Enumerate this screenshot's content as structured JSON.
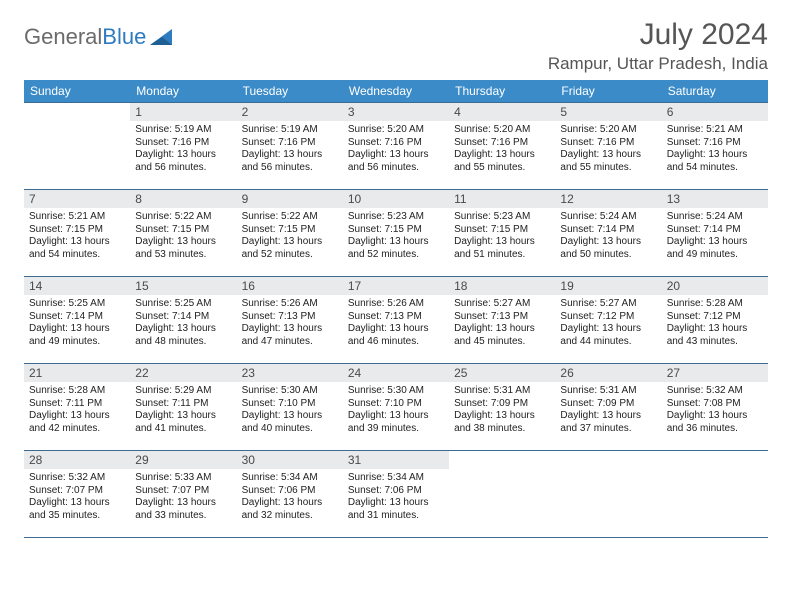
{
  "logo": {
    "word1": "General",
    "word2": "Blue"
  },
  "title": "July 2024",
  "location": "Rampur, Uttar Pradesh, India",
  "day_headers": [
    "Sunday",
    "Monday",
    "Tuesday",
    "Wednesday",
    "Thursday",
    "Friday",
    "Saturday"
  ],
  "colors": {
    "header_bg": "#3b8bc8",
    "header_text": "#ffffff",
    "daynum_bg": "#e9eaec",
    "rule": "#3b6a93",
    "title_text": "#555555",
    "logo_gray": "#6b6b6b",
    "logo_blue": "#2f7bbf"
  },
  "weeks": [
    [
      null,
      {
        "n": "1",
        "sr": "Sunrise: 5:19 AM",
        "ss": "Sunset: 7:16 PM",
        "d1": "Daylight: 13 hours",
        "d2": "and 56 minutes."
      },
      {
        "n": "2",
        "sr": "Sunrise: 5:19 AM",
        "ss": "Sunset: 7:16 PM",
        "d1": "Daylight: 13 hours",
        "d2": "and 56 minutes."
      },
      {
        "n": "3",
        "sr": "Sunrise: 5:20 AM",
        "ss": "Sunset: 7:16 PM",
        "d1": "Daylight: 13 hours",
        "d2": "and 56 minutes."
      },
      {
        "n": "4",
        "sr": "Sunrise: 5:20 AM",
        "ss": "Sunset: 7:16 PM",
        "d1": "Daylight: 13 hours",
        "d2": "and 55 minutes."
      },
      {
        "n": "5",
        "sr": "Sunrise: 5:20 AM",
        "ss": "Sunset: 7:16 PM",
        "d1": "Daylight: 13 hours",
        "d2": "and 55 minutes."
      },
      {
        "n": "6",
        "sr": "Sunrise: 5:21 AM",
        "ss": "Sunset: 7:16 PM",
        "d1": "Daylight: 13 hours",
        "d2": "and 54 minutes."
      }
    ],
    [
      {
        "n": "7",
        "sr": "Sunrise: 5:21 AM",
        "ss": "Sunset: 7:15 PM",
        "d1": "Daylight: 13 hours",
        "d2": "and 54 minutes."
      },
      {
        "n": "8",
        "sr": "Sunrise: 5:22 AM",
        "ss": "Sunset: 7:15 PM",
        "d1": "Daylight: 13 hours",
        "d2": "and 53 minutes."
      },
      {
        "n": "9",
        "sr": "Sunrise: 5:22 AM",
        "ss": "Sunset: 7:15 PM",
        "d1": "Daylight: 13 hours",
        "d2": "and 52 minutes."
      },
      {
        "n": "10",
        "sr": "Sunrise: 5:23 AM",
        "ss": "Sunset: 7:15 PM",
        "d1": "Daylight: 13 hours",
        "d2": "and 52 minutes."
      },
      {
        "n": "11",
        "sr": "Sunrise: 5:23 AM",
        "ss": "Sunset: 7:15 PM",
        "d1": "Daylight: 13 hours",
        "d2": "and 51 minutes."
      },
      {
        "n": "12",
        "sr": "Sunrise: 5:24 AM",
        "ss": "Sunset: 7:14 PM",
        "d1": "Daylight: 13 hours",
        "d2": "and 50 minutes."
      },
      {
        "n": "13",
        "sr": "Sunrise: 5:24 AM",
        "ss": "Sunset: 7:14 PM",
        "d1": "Daylight: 13 hours",
        "d2": "and 49 minutes."
      }
    ],
    [
      {
        "n": "14",
        "sr": "Sunrise: 5:25 AM",
        "ss": "Sunset: 7:14 PM",
        "d1": "Daylight: 13 hours",
        "d2": "and 49 minutes."
      },
      {
        "n": "15",
        "sr": "Sunrise: 5:25 AM",
        "ss": "Sunset: 7:14 PM",
        "d1": "Daylight: 13 hours",
        "d2": "and 48 minutes."
      },
      {
        "n": "16",
        "sr": "Sunrise: 5:26 AM",
        "ss": "Sunset: 7:13 PM",
        "d1": "Daylight: 13 hours",
        "d2": "and 47 minutes."
      },
      {
        "n": "17",
        "sr": "Sunrise: 5:26 AM",
        "ss": "Sunset: 7:13 PM",
        "d1": "Daylight: 13 hours",
        "d2": "and 46 minutes."
      },
      {
        "n": "18",
        "sr": "Sunrise: 5:27 AM",
        "ss": "Sunset: 7:13 PM",
        "d1": "Daylight: 13 hours",
        "d2": "and 45 minutes."
      },
      {
        "n": "19",
        "sr": "Sunrise: 5:27 AM",
        "ss": "Sunset: 7:12 PM",
        "d1": "Daylight: 13 hours",
        "d2": "and 44 minutes."
      },
      {
        "n": "20",
        "sr": "Sunrise: 5:28 AM",
        "ss": "Sunset: 7:12 PM",
        "d1": "Daylight: 13 hours",
        "d2": "and 43 minutes."
      }
    ],
    [
      {
        "n": "21",
        "sr": "Sunrise: 5:28 AM",
        "ss": "Sunset: 7:11 PM",
        "d1": "Daylight: 13 hours",
        "d2": "and 42 minutes."
      },
      {
        "n": "22",
        "sr": "Sunrise: 5:29 AM",
        "ss": "Sunset: 7:11 PM",
        "d1": "Daylight: 13 hours",
        "d2": "and 41 minutes."
      },
      {
        "n": "23",
        "sr": "Sunrise: 5:30 AM",
        "ss": "Sunset: 7:10 PM",
        "d1": "Daylight: 13 hours",
        "d2": "and 40 minutes."
      },
      {
        "n": "24",
        "sr": "Sunrise: 5:30 AM",
        "ss": "Sunset: 7:10 PM",
        "d1": "Daylight: 13 hours",
        "d2": "and 39 minutes."
      },
      {
        "n": "25",
        "sr": "Sunrise: 5:31 AM",
        "ss": "Sunset: 7:09 PM",
        "d1": "Daylight: 13 hours",
        "d2": "and 38 minutes."
      },
      {
        "n": "26",
        "sr": "Sunrise: 5:31 AM",
        "ss": "Sunset: 7:09 PM",
        "d1": "Daylight: 13 hours",
        "d2": "and 37 minutes."
      },
      {
        "n": "27",
        "sr": "Sunrise: 5:32 AM",
        "ss": "Sunset: 7:08 PM",
        "d1": "Daylight: 13 hours",
        "d2": "and 36 minutes."
      }
    ],
    [
      {
        "n": "28",
        "sr": "Sunrise: 5:32 AM",
        "ss": "Sunset: 7:07 PM",
        "d1": "Daylight: 13 hours",
        "d2": "and 35 minutes."
      },
      {
        "n": "29",
        "sr": "Sunrise: 5:33 AM",
        "ss": "Sunset: 7:07 PM",
        "d1": "Daylight: 13 hours",
        "d2": "and 33 minutes."
      },
      {
        "n": "30",
        "sr": "Sunrise: 5:34 AM",
        "ss": "Sunset: 7:06 PM",
        "d1": "Daylight: 13 hours",
        "d2": "and 32 minutes."
      },
      {
        "n": "31",
        "sr": "Sunrise: 5:34 AM",
        "ss": "Sunset: 7:06 PM",
        "d1": "Daylight: 13 hours",
        "d2": "and 31 minutes."
      },
      null,
      null,
      null
    ]
  ]
}
